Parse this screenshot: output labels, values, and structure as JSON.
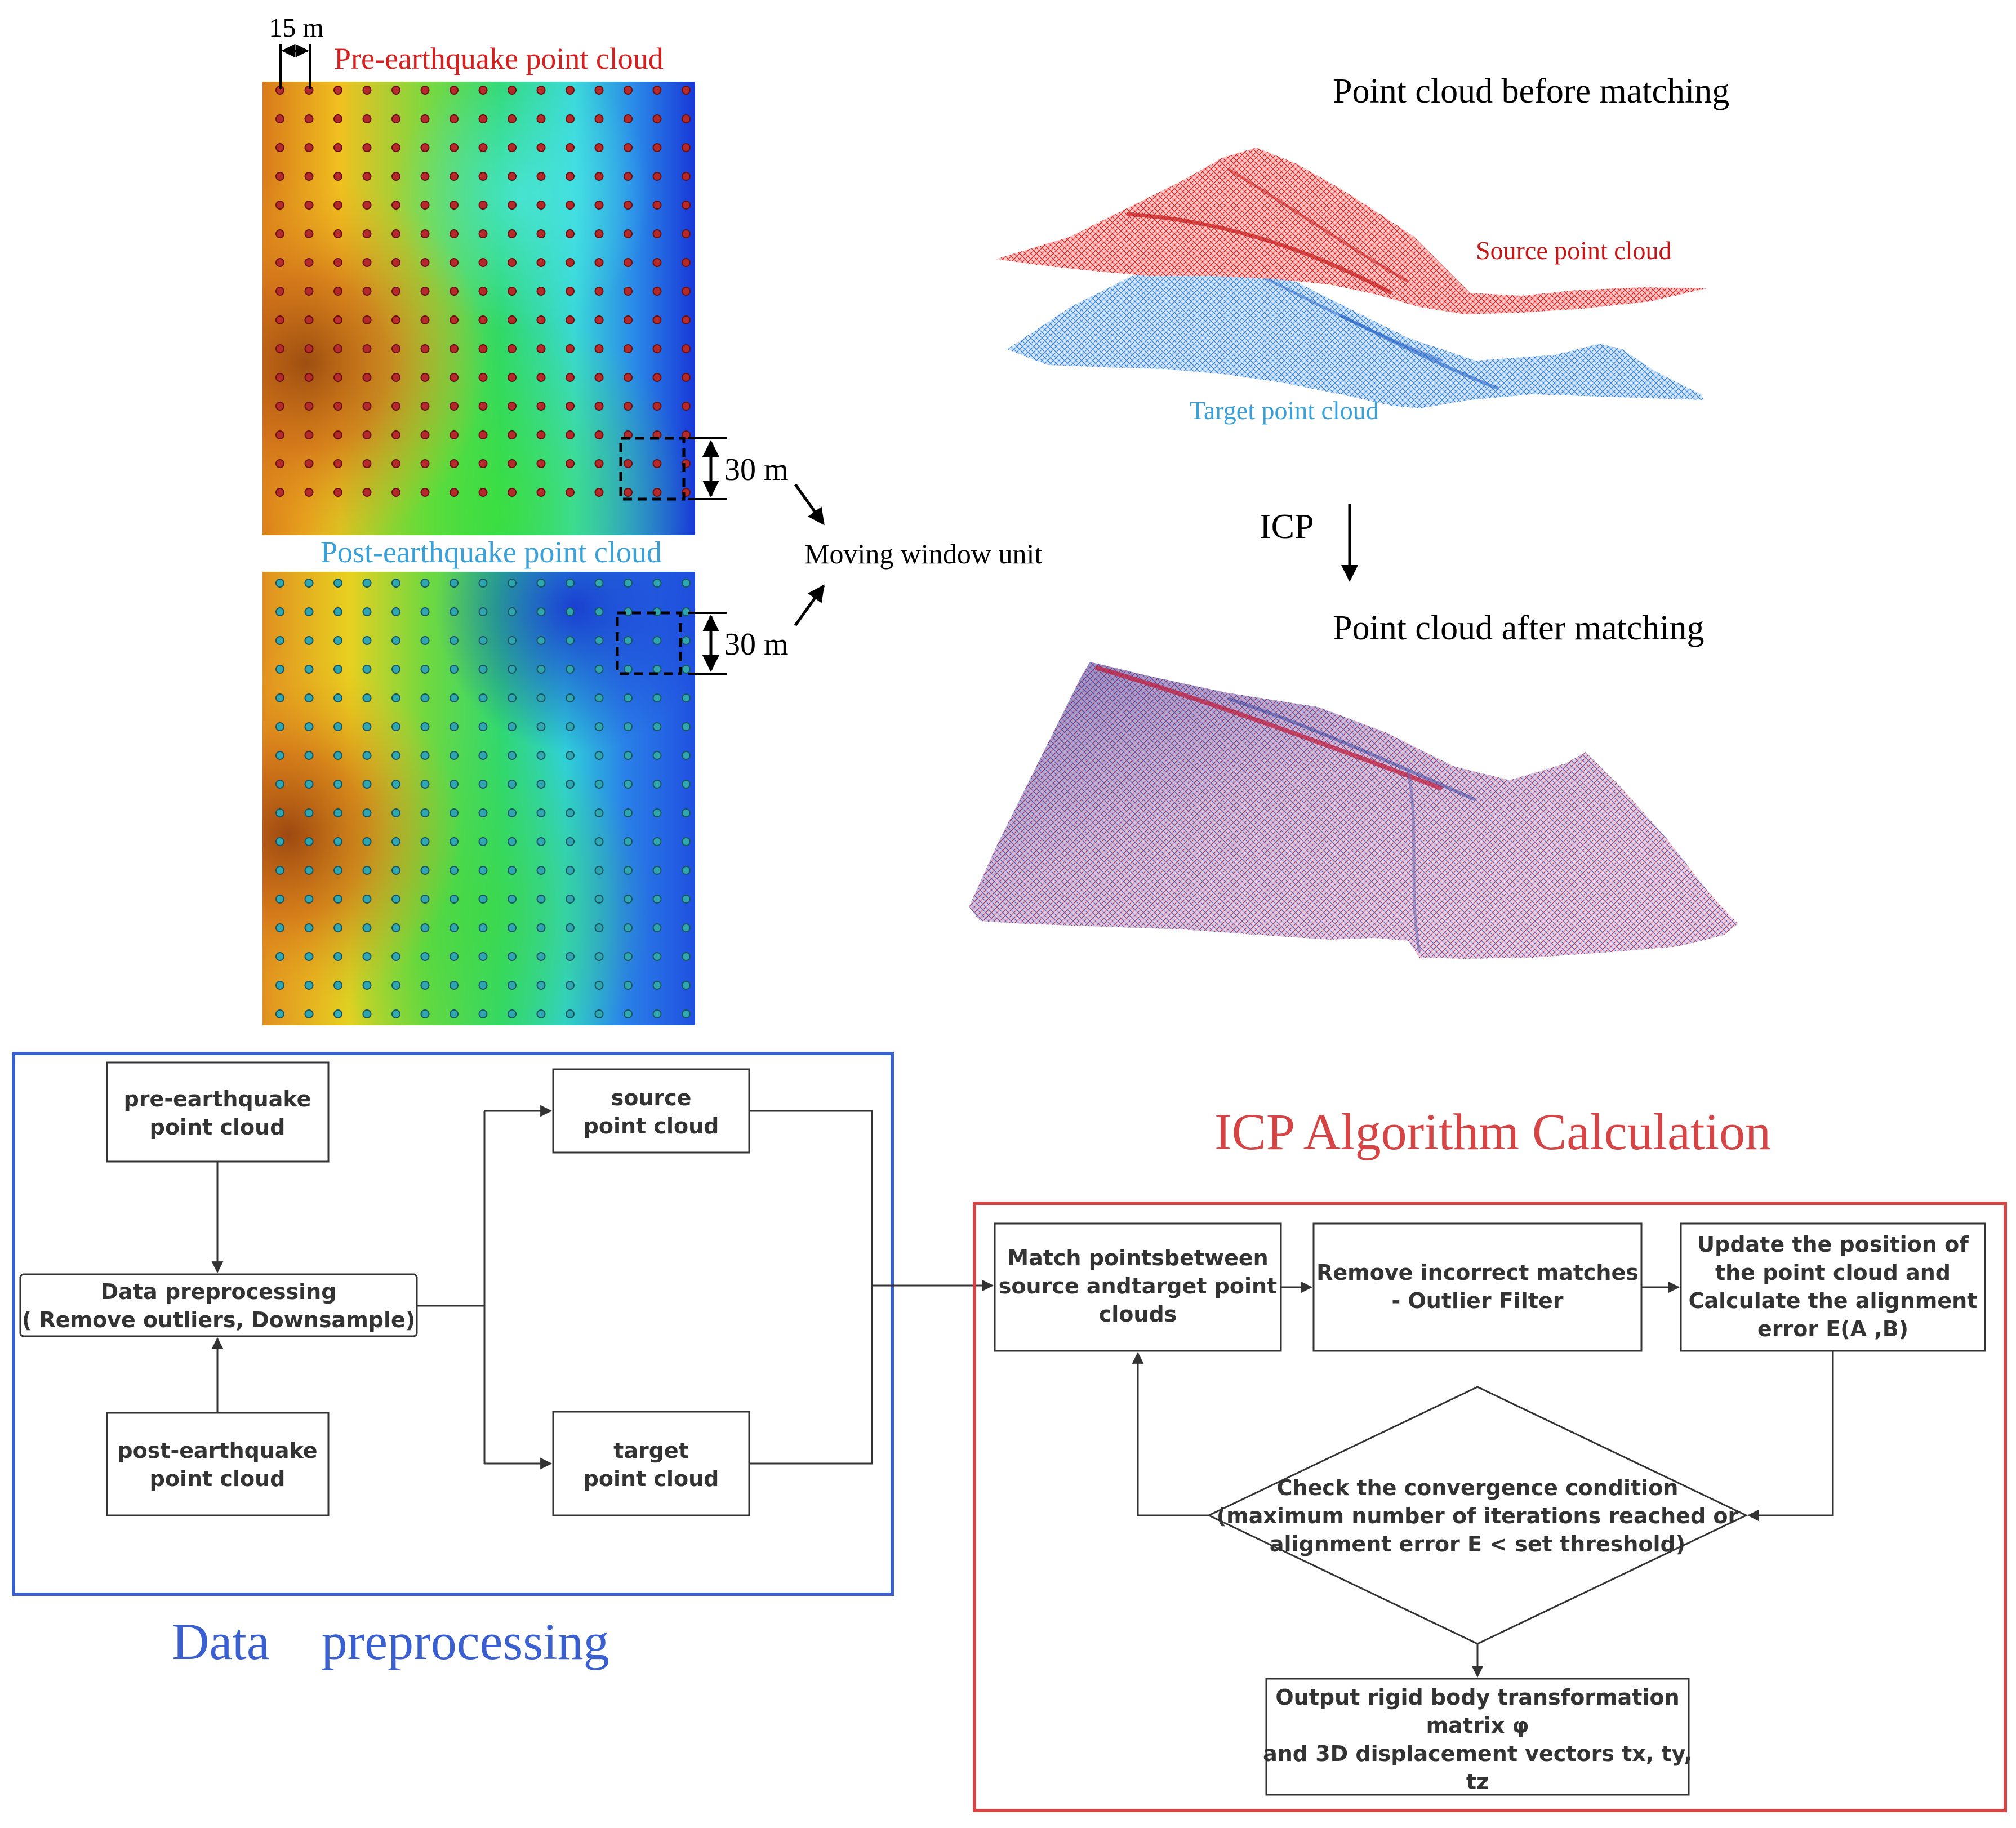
{
  "top_left": {
    "spacing_label": "15 m",
    "pre_title": "Pre-earthquake point cloud",
    "post_title": "Post-earthquake point cloud",
    "window_label_top": "30 m",
    "window_label_bottom": "30 m",
    "moving_window_label": "Moving window unit"
  },
  "top_right": {
    "before_title": "Point cloud before matching",
    "source_label": "Source point cloud",
    "target_label": "Target point cloud",
    "icp_label": "ICP",
    "after_title": "Point cloud after matching"
  },
  "preprocessing": {
    "section_title": "Data    preprocessing",
    "pre_box": [
      "pre-earthquake",
      "point cloud"
    ],
    "post_box": [
      "post-earthquake",
      "point cloud"
    ],
    "dp_box": [
      "Data preprocessing",
      "( Remove outliers, Downsample)"
    ],
    "source_box": [
      "source",
      "point cloud"
    ],
    "target_box": [
      "target",
      "point cloud"
    ]
  },
  "icp": {
    "section_title": "ICP Algorithm Calculation",
    "match_box": [
      "Match pointsbetween",
      "source andtarget point",
      "clouds"
    ],
    "remove_box": [
      "Remove incorrect matches",
      "- Outlier Filter"
    ],
    "update_box": [
      "Update the position of",
      "the point cloud and",
      "Calculate the alignment",
      "error E(A ,B)"
    ],
    "check_diamond": [
      "Check the convergence condition",
      "(maximum number of iterations reached or",
      "alignment error E < set threshold)"
    ],
    "output_box": [
      "Output rigid body transformation",
      "matrix φ",
      "and 3D displacement vectors tx, ty,",
      "tz"
    ]
  },
  "colors": {
    "red": "#d62020",
    "blue": "#3a5fd0",
    "cyan_title": "#3aa0d8",
    "icp_title": "#d64545",
    "pre_dot": "#b42a2a",
    "post_dot": "#2fa6b0"
  }
}
